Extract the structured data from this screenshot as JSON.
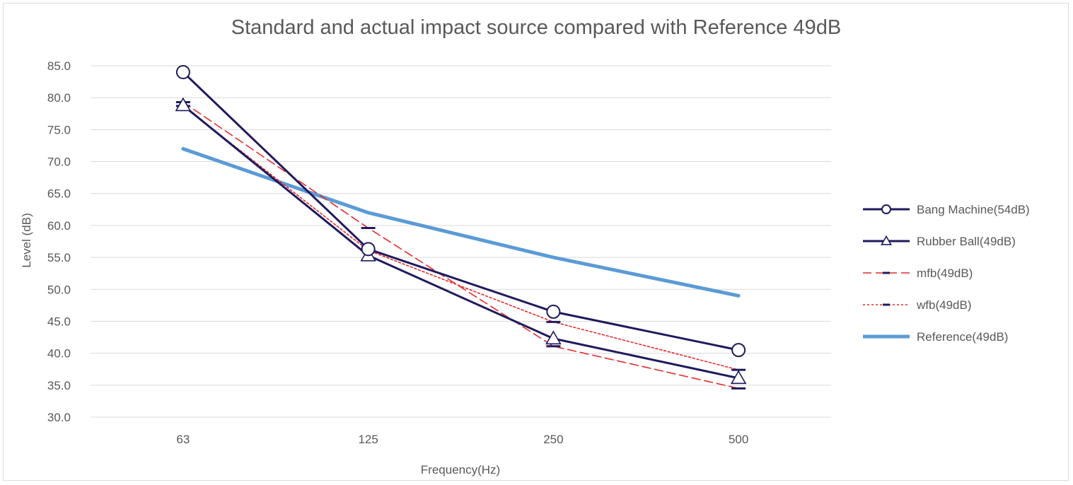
{
  "chart_data": {
    "type": "line",
    "title": "Standard and actual impact source compared with Reference 49dB",
    "xlabel": "Frequency(Hz)",
    "ylabel": "Level (dB)",
    "categories": [
      "63",
      "125",
      "250",
      "500"
    ],
    "ylim": [
      30,
      85
    ],
    "ytick_step": 5,
    "ytick_labels": [
      "30.0",
      "35.0",
      "40.0",
      "45.0",
      "50.0",
      "55.0",
      "60.0",
      "65.0",
      "70.0",
      "75.0",
      "80.0",
      "85.0"
    ],
    "grid": true,
    "legend_position": "right",
    "series": [
      {
        "name": "Bang Machine(54dB)",
        "values": [
          84.0,
          56.3,
          46.5,
          40.5
        ],
        "color": "#1f1a5c",
        "style": "solid",
        "marker": "circle"
      },
      {
        "name": "Rubber Ball(49dB)",
        "values": [
          78.8,
          55.3,
          42.3,
          36.1
        ],
        "color": "#1f1a5c",
        "style": "solid",
        "marker": "triangle"
      },
      {
        "name": "mfb(49dB)",
        "values": [
          79.3,
          59.6,
          41.1,
          34.5
        ],
        "color": "#e8292a",
        "style": "dashed",
        "marker": "dash"
      },
      {
        "name": "wfb(49dB)",
        "values": [
          78.7,
          56.1,
          44.9,
          37.4
        ],
        "color": "#e8292a",
        "style": "dotted",
        "marker": "dash"
      },
      {
        "name": "Reference(49dB)",
        "values": [
          72.0,
          62.0,
          55.0,
          49.0
        ],
        "color": "#5b9bd5",
        "style": "thick",
        "marker": "none"
      }
    ]
  }
}
